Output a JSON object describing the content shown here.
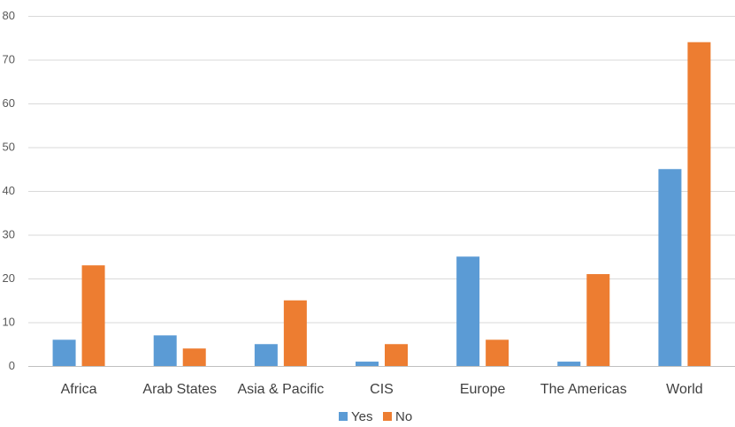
{
  "chart_data": {
    "type": "bar",
    "categories": [
      "Africa",
      "Arab States",
      "Asia & Pacific",
      "CIS",
      "Europe",
      "The Americas",
      "World"
    ],
    "series": [
      {
        "name": "Yes",
        "color": "#5b9bd5",
        "values": [
          6,
          7,
          5,
          1,
          25,
          1,
          45
        ]
      },
      {
        "name": "No",
        "color": "#ed7d31",
        "values": [
          23,
          4,
          15,
          5,
          6,
          21,
          74
        ]
      }
    ],
    "yticks": [
      "0",
      "10",
      "20",
      "30",
      "40",
      "50",
      "60",
      "70",
      "80"
    ],
    "ylim": [
      0,
      80
    ],
    "grid": true,
    "legend_position": "bottom",
    "title": "",
    "xlabel": "",
    "ylabel": ""
  }
}
